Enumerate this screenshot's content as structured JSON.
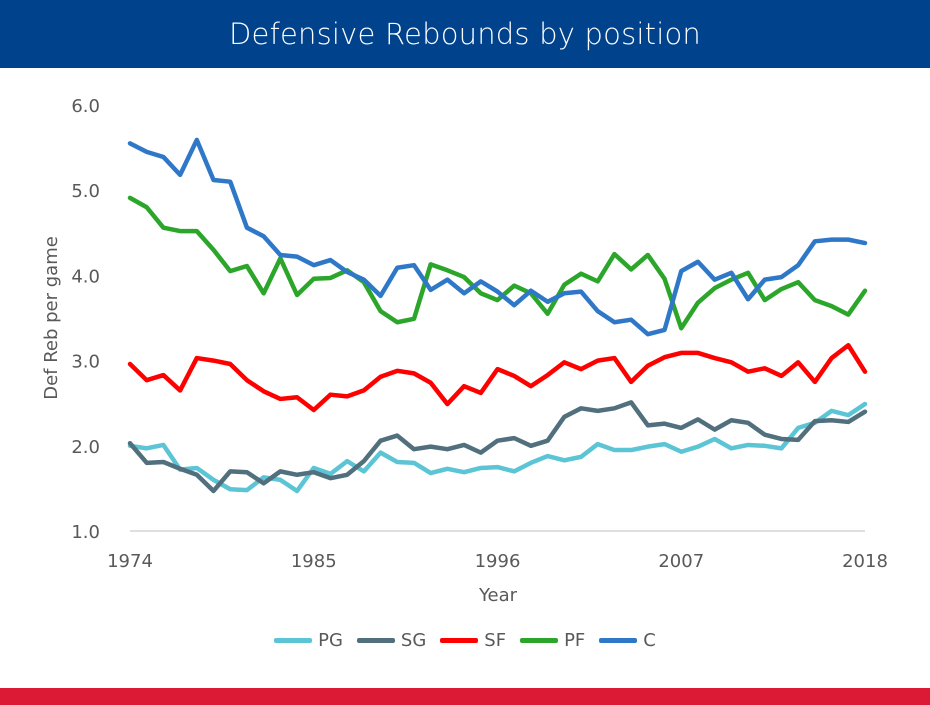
{
  "header": {
    "title": "Defensive Rebounds by position"
  },
  "colors": {
    "header_bg": "#00428c",
    "footer_bar": "#dc1a36"
  },
  "chart_data": {
    "type": "line",
    "title": "Defensive Rebounds by position",
    "xlabel": "Year",
    "ylabel": "Def Reb per game",
    "xlim": [
      1974,
      2018
    ],
    "ylim": [
      1.0,
      6.0
    ],
    "x_ticks": [
      "1974",
      "1985",
      "1996",
      "2007",
      "2018"
    ],
    "y_ticks": [
      "1.0",
      "2.0",
      "3.0",
      "4.0",
      "5.0",
      "6.0"
    ],
    "grid": false,
    "legend_position": "bottom",
    "x": [
      1974,
      1975,
      1976,
      1977,
      1978,
      1979,
      1980,
      1981,
      1982,
      1983,
      1984,
      1985,
      1986,
      1987,
      1988,
      1989,
      1990,
      1991,
      1992,
      1993,
      1994,
      1995,
      1996,
      1997,
      1998,
      1999,
      2000,
      2001,
      2002,
      2003,
      2004,
      2005,
      2006,
      2007,
      2008,
      2009,
      2010,
      2011,
      2012,
      2013,
      2014,
      2015,
      2016,
      2017,
      2018
    ],
    "series": [
      {
        "name": "PG",
        "color": "#5bc5d6",
        "values": [
          2.0,
          1.97,
          2.01,
          1.72,
          1.74,
          1.6,
          1.49,
          1.48,
          1.63,
          1.6,
          1.47,
          1.74,
          1.67,
          1.82,
          1.7,
          1.92,
          1.81,
          1.8,
          1.68,
          1.73,
          1.69,
          1.74,
          1.75,
          1.7,
          1.8,
          1.88,
          1.83,
          1.87,
          2.02,
          1.95,
          1.95,
          1.99,
          2.02,
          1.93,
          1.99,
          2.08,
          1.97,
          2.01,
          2.0,
          1.97,
          2.21,
          2.27,
          2.41,
          2.36,
          2.49
        ]
      },
      {
        "name": "SG",
        "color": "#516f7d",
        "values": [
          2.03,
          1.8,
          1.81,
          1.73,
          1.66,
          1.47,
          1.7,
          1.69,
          1.56,
          1.7,
          1.66,
          1.69,
          1.62,
          1.66,
          1.82,
          2.06,
          2.12,
          1.96,
          1.99,
          1.96,
          2.01,
          1.92,
          2.06,
          2.09,
          2.0,
          2.06,
          2.34,
          2.44,
          2.41,
          2.44,
          2.51,
          2.24,
          2.26,
          2.21,
          2.31,
          2.19,
          2.3,
          2.27,
          2.13,
          2.08,
          2.07,
          2.29,
          2.3,
          2.28,
          2.4
        ]
      },
      {
        "name": "SF",
        "color": "#ff0000",
        "values": [
          2.96,
          2.77,
          2.83,
          2.65,
          3.03,
          3.0,
          2.96,
          2.77,
          2.64,
          2.55,
          2.57,
          2.42,
          2.6,
          2.58,
          2.65,
          2.81,
          2.88,
          2.85,
          2.74,
          2.49,
          2.7,
          2.62,
          2.9,
          2.82,
          2.7,
          2.83,
          2.98,
          2.9,
          3.0,
          3.03,
          2.75,
          2.94,
          3.04,
          3.09,
          3.09,
          3.03,
          2.98,
          2.87,
          2.91,
          2.82,
          2.98,
          2.75,
          3.03,
          3.18,
          2.87
        ]
      },
      {
        "name": "PF",
        "color": "#2ca62a",
        "values": [
          4.91,
          4.8,
          4.56,
          4.52,
          4.52,
          4.3,
          4.05,
          4.11,
          3.79,
          4.2,
          3.77,
          3.96,
          3.97,
          4.06,
          3.92,
          3.58,
          3.45,
          3.49,
          4.13,
          4.06,
          3.98,
          3.79,
          3.71,
          3.88,
          3.79,
          3.55,
          3.89,
          4.02,
          3.93,
          4.25,
          4.07,
          4.24,
          3.96,
          3.38,
          3.68,
          3.85,
          3.95,
          4.03,
          3.71,
          3.84,
          3.92,
          3.71,
          3.64,
          3.54,
          3.82
        ]
      },
      {
        "name": "C",
        "color": "#2f78c8",
        "values": [
          5.55,
          5.45,
          5.39,
          5.18,
          5.59,
          5.12,
          5.1,
          4.56,
          4.46,
          4.24,
          4.22,
          4.12,
          4.18,
          4.04,
          3.95,
          3.76,
          4.09,
          4.12,
          3.83,
          3.95,
          3.79,
          3.93,
          3.81,
          3.65,
          3.82,
          3.69,
          3.79,
          3.81,
          3.58,
          3.45,
          3.48,
          3.31,
          3.36,
          4.05,
          4.16,
          3.95,
          4.03,
          3.72,
          3.95,
          3.98,
          4.12,
          4.4,
          4.42,
          4.42,
          4.38
        ]
      }
    ]
  }
}
